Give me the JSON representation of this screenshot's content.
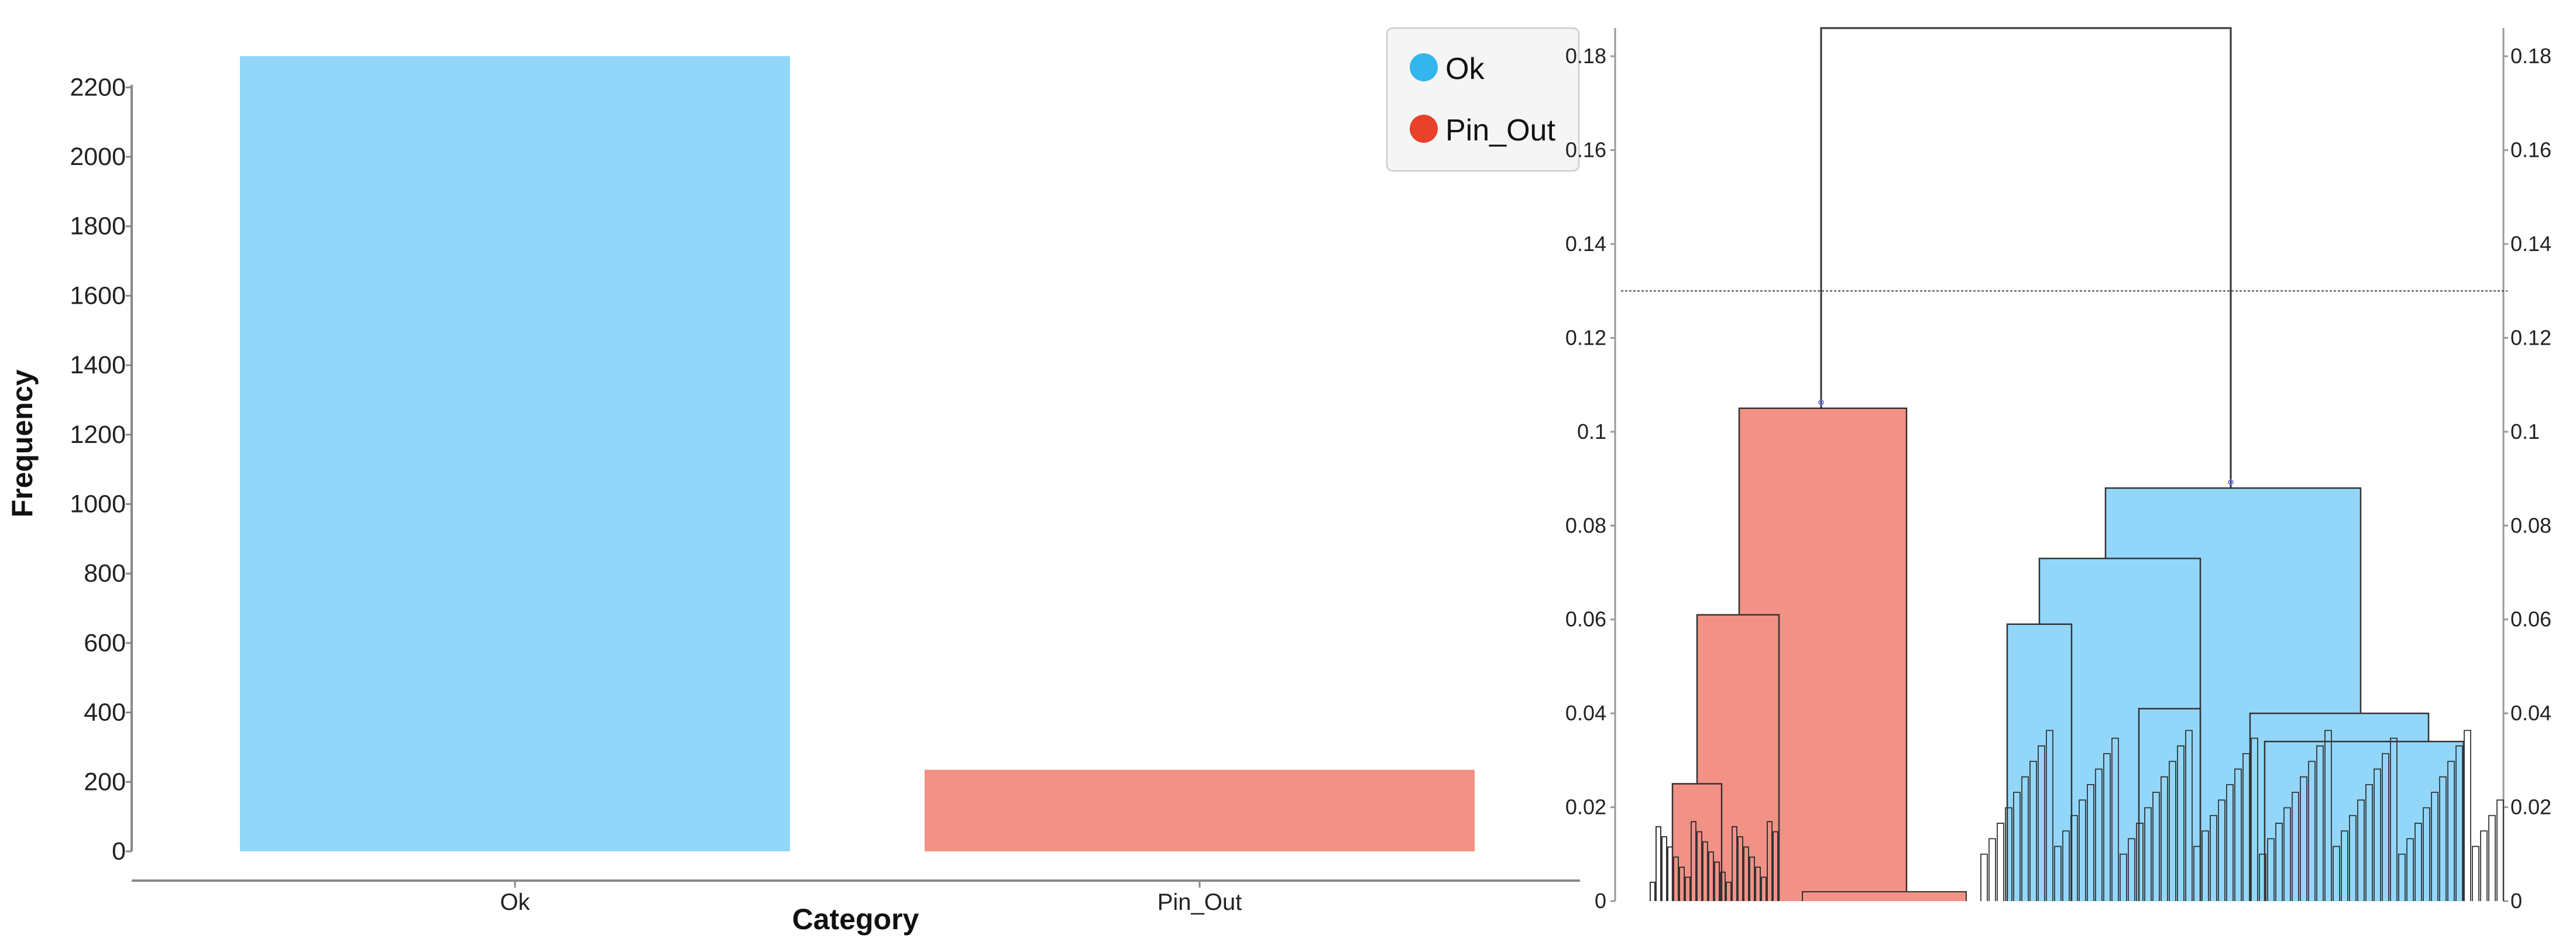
{
  "chart_data": [
    {
      "type": "bar",
      "categories": [
        "Ok",
        "Pin_Out"
      ],
      "values": [
        2290,
        235
      ],
      "xlabel": "Category",
      "ylabel": "Frequency",
      "ylim": [
        0,
        2300
      ],
      "yticks": [
        0,
        200,
        400,
        600,
        800,
        1000,
        1200,
        1400,
        1600,
        1800,
        2000,
        2200
      ],
      "grid": false,
      "colors": [
        "#92d7fa",
        "#f29186"
      ],
      "legend": {
        "placement": "top-right",
        "entries": [
          {
            "label": "Ok",
            "color": "#33b5ee"
          },
          {
            "label": "Pin_Out",
            "color": "#e8412c"
          }
        ]
      }
    },
    {
      "type": "dendrogram",
      "ylim": [
        0,
        0.186
      ],
      "yticks": [
        "0",
        "0.02",
        "0.04",
        "0.06",
        "0.08",
        "0.1",
        "0.12",
        "0.14",
        "0.16",
        "0.18"
      ],
      "cut_height": 0.13,
      "root_height": 0.186,
      "clusters": [
        {
          "name": "Pin_Out",
          "color": "#f29186",
          "merge_height": 0.105,
          "subclusters": [
            0.061,
            0.025,
            0.002
          ]
        },
        {
          "name": "Ok",
          "color": "#92d7fa",
          "merge_height": 0.088,
          "subclusters": [
            0.073,
            0.059,
            0.041,
            0.058
          ]
        }
      ]
    }
  ]
}
